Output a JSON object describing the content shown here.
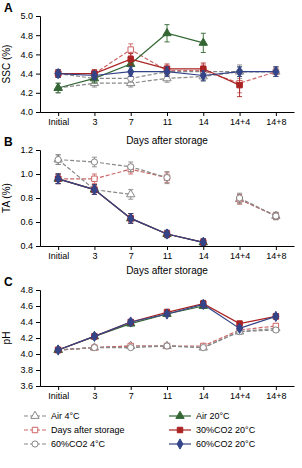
{
  "chart_data": [
    {
      "type": "line",
      "annotations": [
        {
          "text": "A"
        }
      ],
      "ylabel": "SSC (%)",
      "categories": [
        "Initial",
        "3",
        "7",
        "11",
        "14",
        "14+4",
        "14+8"
      ],
      "ylim": [
        4.0,
        5.0
      ],
      "yticks": [
        {
          "value": 4.0,
          "label": "4.0"
        },
        4.2,
        4.4,
        4.6,
        4.8,
        {
          "value": 5.0,
          "label": "5.0"
        }
      ],
      "grid": false,
      "legend": "bottom",
      "series": [
        {
          "name": "Air 4°C",
          "color": "#888888",
          "marker": "triangle-open",
          "line_style": "dashed",
          "values": [
            4.25,
            4.3,
            4.3,
            4.35,
            4.37,
            4.42,
            4.42
          ],
          "errors": [
            0.05,
            0.04,
            0.04,
            0.04,
            0.05,
            0.07,
            0.05
          ]
        },
        {
          "name": "Days after storage",
          "color": "#cc6666",
          "marker": "square-open",
          "line_style": "dashed",
          "values": [
            4.4,
            4.4,
            4.65,
            4.43,
            4.43,
            4.3,
            4.42
          ],
          "errors": [
            0.04,
            0.04,
            0.06,
            0.05,
            0.06,
            0.1,
            0.05
          ]
        },
        {
          "name": "60%CO2 4°C",
          "color": "#888888",
          "marker": "circle-open",
          "line_style": "dashed",
          "values": [
            4.4,
            4.35,
            4.35,
            4.42,
            4.42,
            4.42,
            4.42
          ],
          "errors": [
            0.04,
            0.04,
            0.04,
            0.04,
            0.05,
            0.05,
            0.05
          ]
        },
        {
          "name": "Air 20°C",
          "color": "#336633",
          "marker": "triangle",
          "line_style": "solid",
          "values": [
            4.25,
            4.35,
            4.5,
            4.82,
            4.72,
            null,
            null
          ],
          "errors": [
            0.05,
            0.05,
            0.07,
            0.09,
            0.1,
            null,
            null
          ]
        },
        {
          "name": "30%CO2 20°C",
          "color": "#aa2222",
          "marker": "square",
          "line_style": "solid",
          "values": [
            4.4,
            4.4,
            4.55,
            4.45,
            4.45,
            4.28,
            null
          ],
          "errors": [
            0.04,
            0.04,
            0.06,
            0.05,
            0.06,
            0.12,
            null
          ]
        },
        {
          "name": "60%CO2 20°C",
          "color": "#334488",
          "marker": "diamond",
          "line_style": "solid",
          "values": [
            4.4,
            4.38,
            4.42,
            4.42,
            4.38,
            4.42,
            4.42
          ],
          "errors": [
            0.04,
            0.04,
            0.05,
            0.05,
            0.05,
            0.05,
            0.05
          ]
        }
      ]
    },
    {
      "type": "line",
      "title": "Days after storage",
      "annotations": [
        {
          "text": "B"
        }
      ],
      "xlabel": "Days after storage",
      "ylabel": "TA (%)",
      "categories": [
        "Initial",
        "3",
        "7",
        "11",
        "14",
        "14+4",
        "14+8"
      ],
      "ylim": [
        0.4,
        1.2
      ],
      "yticks": [
        0.4,
        0.6,
        0.8,
        {
          "value": 1.0,
          "label": "1.0"
        },
        1.2
      ],
      "grid": false,
      "series": [
        {
          "name": "Air 4°C",
          "color": "#888888",
          "marker": "triangle-open",
          "line_style": "dashed",
          "values": [
            1.12,
            0.87,
            0.83,
            null,
            null,
            0.79,
            0.65
          ],
          "errors": [
            0.04,
            0.04,
            0.04,
            null,
            null,
            0.04,
            0.03
          ]
        },
        {
          "name": "Days after storage",
          "color": "#cc6666",
          "marker": "square-open",
          "line_style": "dashed",
          "values": [
            0.96,
            0.96,
            1.04,
            0.97,
            null,
            0.79,
            0.65
          ],
          "errors": [
            0.04,
            0.04,
            0.04,
            0.04,
            null,
            0.04,
            0.03
          ]
        },
        {
          "name": "60%CO2 4°C",
          "color": "#888888",
          "marker": "circle-open",
          "line_style": "dashed",
          "values": [
            1.12,
            1.1,
            1.06,
            0.97,
            null,
            0.8,
            0.65
          ],
          "errors": [
            0.04,
            0.04,
            0.04,
            0.05,
            null,
            0.04,
            0.03
          ]
        },
        {
          "name": "Air 20°C",
          "color": "#336633",
          "marker": "triangle",
          "line_style": "solid",
          "values": [
            0.96,
            0.87,
            0.63,
            0.5,
            0.43,
            null,
            null
          ],
          "errors": [
            0.04,
            0.04,
            0.04,
            0.03,
            0.03,
            null,
            null
          ]
        },
        {
          "name": "30%CO2 20°C",
          "color": "#aa2222",
          "marker": "square",
          "line_style": "solid",
          "values": [
            0.96,
            0.87,
            0.63,
            0.5,
            0.43,
            null,
            null
          ],
          "errors": [
            0.04,
            0.04,
            0.04,
            0.03,
            0.03,
            null,
            null
          ]
        },
        {
          "name": "60%CO2 20°C",
          "color": "#334488",
          "marker": "diamond",
          "line_style": "solid",
          "values": [
            0.96,
            0.87,
            0.63,
            0.5,
            0.43,
            null,
            null
          ],
          "errors": [
            0.04,
            0.04,
            0.04,
            0.03,
            0.03,
            null,
            null
          ]
        }
      ]
    },
    {
      "type": "line",
      "annotations": [
        {
          "text": "C"
        }
      ],
      "ylabel": "pH",
      "categories": [
        "Initial",
        "3",
        "7",
        "11",
        "14",
        "14+4",
        "14+8"
      ],
      "ylim": [
        3.6,
        4.8
      ],
      "yticks": [
        3.6,
        3.8,
        {
          "value": 4.0,
          "label": "4.0"
        },
        4.2,
        4.4,
        4.6,
        4.8
      ],
      "grid": false,
      "series": [
        {
          "name": "Air 4°C",
          "color": "#888888",
          "marker": "triangle-open",
          "line_style": "dashed",
          "values": [
            4.05,
            4.08,
            4.1,
            4.1,
            4.08,
            4.28,
            4.32
          ],
          "errors": [
            0.02,
            0.02,
            0.02,
            0.02,
            0.02,
            0.03,
            0.03
          ]
        },
        {
          "name": "Days after storage",
          "color": "#cc6666",
          "marker": "square-open",
          "line_style": "dashed",
          "values": [
            4.05,
            4.08,
            4.1,
            4.1,
            4.1,
            4.3,
            4.35
          ],
          "errors": [
            0.02,
            0.02,
            0.02,
            0.02,
            0.02,
            0.03,
            0.03
          ]
        },
        {
          "name": "60%CO2 4°C",
          "color": "#888888",
          "marker": "circle-open",
          "line_style": "dashed",
          "values": [
            4.05,
            4.08,
            4.08,
            4.1,
            4.08,
            4.28,
            4.3
          ],
          "errors": [
            0.02,
            0.02,
            0.02,
            0.02,
            0.02,
            0.03,
            0.03
          ]
        },
        {
          "name": "Air 20°C",
          "color": "#336633",
          "marker": "triangle",
          "line_style": "solid",
          "values": [
            4.05,
            4.22,
            4.38,
            4.5,
            4.6,
            null,
            null
          ],
          "errors": [
            0.02,
            0.03,
            0.03,
            0.03,
            0.03,
            null,
            null
          ]
        },
        {
          "name": "30%CO2 20°C",
          "color": "#aa2222",
          "marker": "square",
          "line_style": "solid",
          "values": [
            4.05,
            4.22,
            4.4,
            4.52,
            4.63,
            4.38,
            4.47
          ],
          "errors": [
            0.02,
            0.03,
            0.03,
            0.04,
            0.04,
            0.03,
            0.03
          ]
        },
        {
          "name": "60%CO2 20°C",
          "color": "#334488",
          "marker": "diamond",
          "line_style": "solid",
          "values": [
            4.05,
            4.22,
            4.4,
            4.5,
            4.62,
            4.32,
            4.47
          ],
          "errors": [
            0.02,
            0.03,
            0.03,
            0.03,
            0.04,
            0.03,
            0.03
          ]
        }
      ]
    }
  ]
}
